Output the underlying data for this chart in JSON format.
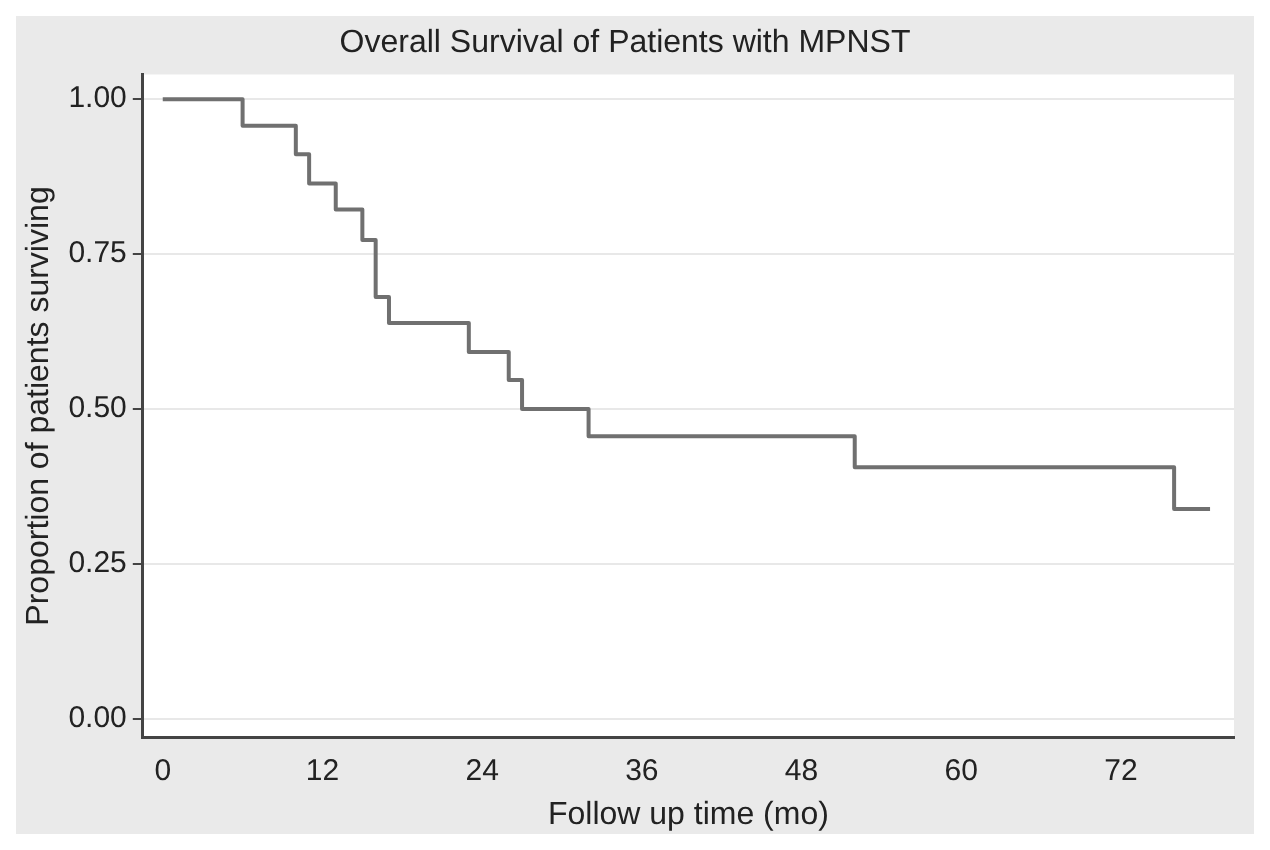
{
  "chart_data": {
    "type": "step",
    "title": "Overall Survival of Patients with MPNST",
    "xlabel": "Follow up time (mo)",
    "ylabel": "Proportion of patients surviving",
    "x": [
      0,
      6,
      10,
      11,
      13,
      15,
      16,
      17,
      23,
      26,
      27,
      32,
      52,
      76,
      78.7
    ],
    "values": [
      1,
      0.957,
      0.911,
      0.864,
      0.822,
      0.773,
      0.681,
      0.639,
      0.592,
      0.547,
      0.5,
      0.456,
      0.406,
      0.339,
      0.339
    ],
    "color": "#707070",
    "xlim": [
      -1.5,
      80.5
    ],
    "xticks": [
      0,
      12,
      24,
      36,
      48,
      60,
      72
    ],
    "ylim": [
      -0.03,
      1.04
    ],
    "yticks": [
      {
        "value": 0,
        "label": "0.00"
      },
      {
        "value": 0.25,
        "label": "0.25"
      },
      {
        "value": 0.5,
        "label": "0.50"
      },
      {
        "value": 0.75,
        "label": "0.75"
      },
      {
        "value": 1,
        "label": "1.00"
      }
    ],
    "grid": "y",
    "legend": false
  }
}
